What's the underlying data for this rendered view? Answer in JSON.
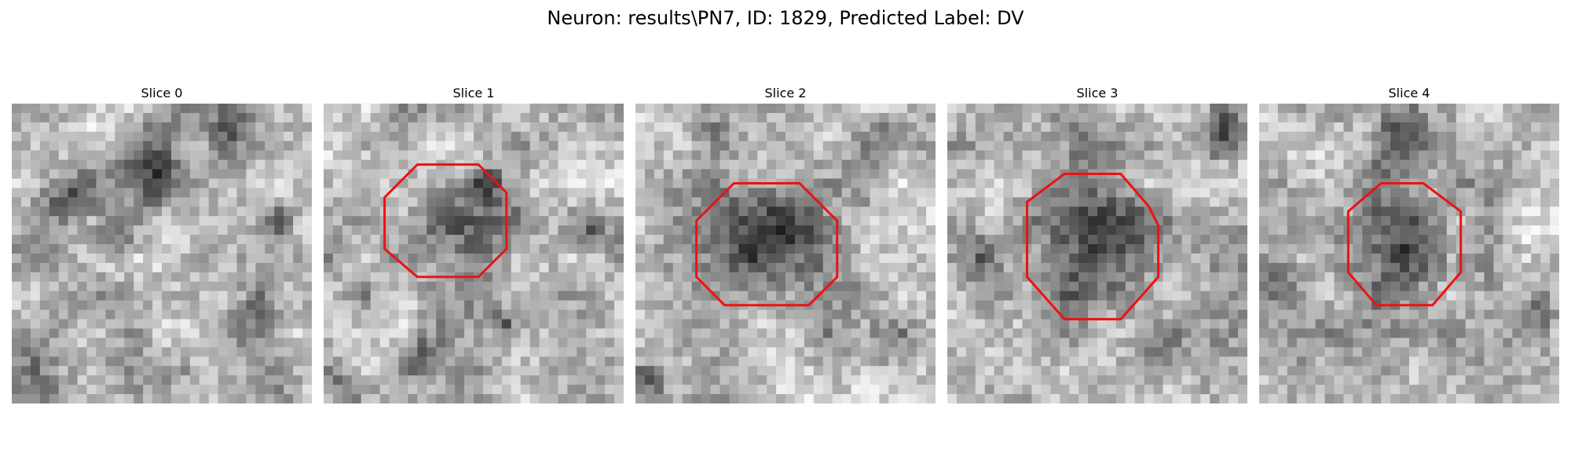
{
  "figure": {
    "title": "Neuron: results\\PN7, ID: 1829, Predicted Label: DV"
  },
  "colors": {
    "contour": "#ee1111",
    "background": "#ffffff"
  },
  "slices": [
    {
      "label": "Slice 0",
      "has_contour": false
    },
    {
      "label": "Slice 1",
      "has_contour": true
    },
    {
      "label": "Slice 2",
      "has_contour": true
    },
    {
      "label": "Slice 3",
      "has_contour": true
    },
    {
      "label": "Slice 4",
      "has_contour": true
    }
  ]
}
